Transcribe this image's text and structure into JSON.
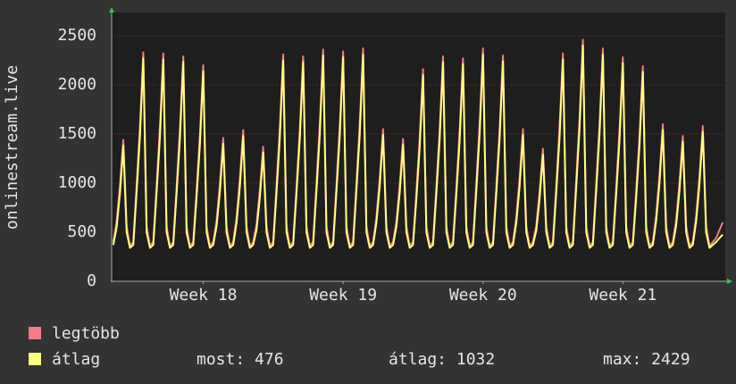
{
  "chart_data": {
    "type": "line",
    "ylabel": "onlinestream.live",
    "x": [
      0,
      4,
      8,
      12,
      16,
      20,
      24,
      28,
      32,
      36,
      40,
      44,
      48,
      52,
      56,
      60,
      64,
      68,
      72,
      76,
      80,
      84,
      88,
      92,
      96,
      100,
      104,
      108,
      112,
      116,
      120,
      124,
      128,
      132,
      136,
      140,
      144,
      148,
      152,
      156,
      160,
      164,
      168,
      172,
      176,
      180,
      184,
      188,
      192,
      196,
      200,
      204,
      208,
      212,
      216,
      220,
      224,
      228,
      232,
      236,
      240,
      244,
      248,
      252,
      256,
      260,
      264,
      268,
      272,
      276,
      280,
      284,
      288,
      292,
      296,
      300,
      304,
      308,
      312,
      316,
      320,
      324,
      328,
      332,
      336,
      340,
      344,
      348,
      352,
      356,
      360,
      364,
      368,
      372,
      376,
      380,
      384,
      388,
      392,
      396,
      400,
      404,
      408,
      412,
      416,
      420,
      424,
      428,
      432,
      436,
      440,
      444,
      448,
      452,
      456,
      460,
      464,
      468,
      472,
      476,
      480,
      484,
      488,
      492,
      496,
      500,
      504,
      508,
      512,
      516,
      520,
      524,
      528,
      532,
      536,
      540,
      544,
      548,
      552,
      556,
      560,
      564,
      568,
      572,
      576,
      580,
      584,
      588,
      592,
      596,
      600,
      604,
      608,
      612,
      616,
      620,
      624,
      628,
      632,
      636,
      640,
      644,
      648,
      652,
      656,
      660,
      664,
      668,
      672,
      676,
      680,
      684,
      688,
      692,
      696,
      700,
      704,
      708,
      712,
      716,
      720,
      724,
      728,
      732
    ],
    "series": [
      {
        "name": "legtöbb",
        "color": "#f77b86",
        "values": [
          400,
          605,
          979,
          1440,
          560,
          360,
          400,
          979,
          1584,
          2330,
          560,
          360,
          400,
          974,
          1578,
          2320,
          560,
          360,
          400,
          962,
          1557,
          2290,
          560,
          360,
          400,
          924,
          1496,
          2200,
          560,
          360,
          400,
          613,
          993,
          1460,
          560,
          360,
          400,
          647,
          1047,
          1540,
          560,
          360,
          400,
          575,
          932,
          1370,
          560,
          360,
          400,
          970,
          1571,
          2310,
          560,
          360,
          400,
          962,
          1557,
          2290,
          560,
          360,
          400,
          991,
          1605,
          2360,
          560,
          360,
          400,
          983,
          1591,
          2340,
          560,
          360,
          400,
          995,
          1612,
          2370,
          560,
          360,
          400,
          651,
          1054,
          1550,
          560,
          360,
          400,
          609,
          986,
          1450,
          560,
          360,
          400,
          907,
          1469,
          2160,
          560,
          360,
          400,
          962,
          1557,
          2290,
          560,
          360,
          400,
          953,
          1544,
          2270,
          560,
          360,
          400,
          995,
          1612,
          2370,
          560,
          360,
          400,
          966,
          1564,
          2300,
          560,
          360,
          400,
          651,
          1054,
          1550,
          560,
          360,
          400,
          567,
          918,
          1350,
          560,
          360,
          400,
          974,
          1578,
          2320,
          560,
          360,
          400,
          1033,
          1673,
          2460,
          560,
          360,
          400,
          995,
          1612,
          2370,
          560,
          360,
          400,
          958,
          1550,
          2280,
          560,
          360,
          400,
          920,
          1489,
          2190,
          560,
          360,
          400,
          672,
          1088,
          1600,
          560,
          360,
          400,
          622,
          1006,
          1480,
          560,
          360,
          400,
          664,
          1074,
          1580,
          560,
          360,
          400,
          440,
          520,
          600
        ]
      },
      {
        "name": "átlag",
        "color": "#ffff80",
        "values": [
          370,
          552,
          897,
          1380,
          500,
          340,
          370,
          908,
          1476,
          2270,
          500,
          340,
          370,
          904,
          1469,
          2260,
          500,
          340,
          370,
          892,
          1450,
          2230,
          500,
          340,
          370,
          856,
          1391,
          2140,
          500,
          340,
          370,
          560,
          910,
          1400,
          500,
          340,
          370,
          592,
          962,
          1480,
          500,
          340,
          370,
          524,
          852,
          1310,
          500,
          340,
          370,
          900,
          1463,
          2250,
          500,
          340,
          370,
          892,
          1450,
          2230,
          500,
          340,
          370,
          920,
          1495,
          2300,
          500,
          340,
          370,
          912,
          1482,
          2280,
          500,
          340,
          370,
          924,
          1502,
          2310,
          500,
          340,
          370,
          596,
          969,
          1490,
          500,
          340,
          370,
          556,
          904,
          1390,
          500,
          340,
          370,
          840,
          1365,
          2100,
          500,
          340,
          370,
          892,
          1450,
          2230,
          500,
          340,
          370,
          884,
          1437,
          2210,
          500,
          340,
          370,
          924,
          1502,
          2310,
          500,
          340,
          370,
          896,
          1456,
          2240,
          500,
          340,
          370,
          596,
          969,
          1490,
          500,
          340,
          370,
          516,
          839,
          1290,
          500,
          340,
          370,
          904,
          1469,
          2260,
          500,
          340,
          370,
          960,
          1560,
          2400,
          500,
          340,
          370,
          924,
          1502,
          2310,
          500,
          340,
          370,
          888,
          1443,
          2220,
          500,
          340,
          370,
          852,
          1385,
          2130,
          500,
          340,
          370,
          616,
          1001,
          1540,
          500,
          340,
          370,
          568,
          923,
          1420,
          500,
          340,
          370,
          608,
          988,
          1520,
          500,
          340,
          370,
          400,
          440,
          476
        ]
      }
    ],
    "xlim": [
      -2,
      735
    ],
    "xticks": [
      {
        "value": 108,
        "label": "Week 18"
      },
      {
        "value": 276,
        "label": "Week 19"
      },
      {
        "value": 444,
        "label": "Week 20"
      },
      {
        "value": 612,
        "label": "Week 21"
      }
    ],
    "ylim": [
      0,
      2736
    ],
    "yticks": [
      0,
      500,
      1000,
      1500,
      2000,
      2500
    ],
    "grid": true,
    "stats": [
      "most: 476",
      "átlag: 1032",
      "max: 2429"
    ]
  }
}
